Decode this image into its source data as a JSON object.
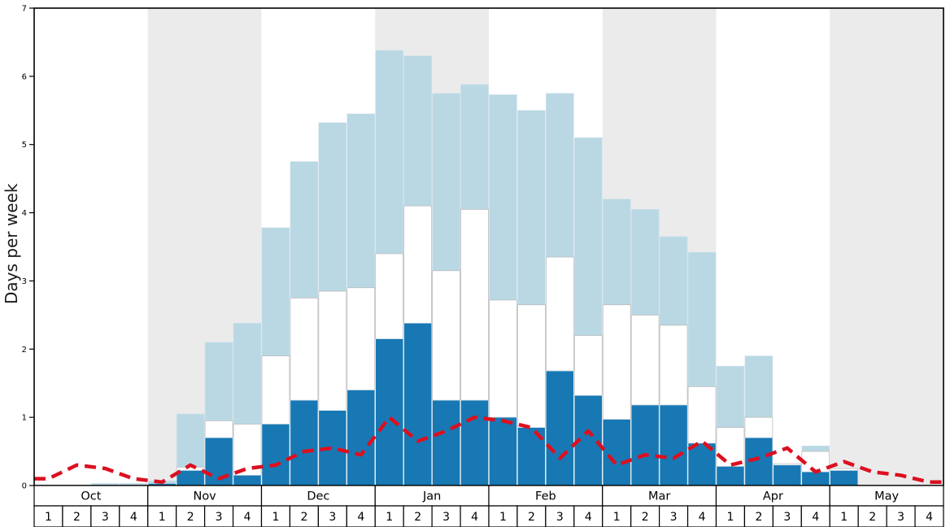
{
  "chart_data": {
    "type": "bar",
    "subtype": "stacked-bars-with-dashed-line",
    "title": "",
    "xlabel": "",
    "ylabel": "Days per week",
    "ylim": [
      0,
      7
    ],
    "yticks": [
      0,
      1,
      2,
      3,
      4,
      5,
      6,
      7
    ],
    "months": [
      "Oct",
      "Nov",
      "Dec",
      "Jan",
      "Feb",
      "Mar",
      "Apr",
      "May"
    ],
    "week_labels": [
      "1",
      "2",
      "3",
      "4"
    ],
    "values_are": "cumulative_stack_tops_in_days_per_week",
    "series": [
      {
        "name": "dark-blue-bar",
        "color": "#1878b4",
        "values": [
          0,
          0,
          0,
          0,
          0.03,
          0.22,
          0.7,
          0.15,
          0.9,
          1.25,
          1.1,
          1.4,
          2.15,
          2.38,
          1.25,
          1.25,
          1.0,
          0.85,
          1.68,
          1.32,
          0.97,
          1.18,
          1.18,
          0.62,
          0.28,
          0.7,
          0.3,
          0.2,
          0.22,
          0,
          0,
          0
        ]
      },
      {
        "name": "white-bar",
        "color": "#ffffff",
        "values": [
          0,
          0,
          0,
          0,
          0.03,
          0.27,
          0.95,
          0.9,
          1.9,
          2.75,
          2.85,
          2.9,
          3.4,
          4.1,
          3.15,
          4.05,
          2.72,
          2.65,
          3.35,
          2.2,
          2.65,
          2.5,
          2.35,
          1.45,
          0.85,
          1.0,
          0.32,
          0.5,
          0.25,
          0,
          0,
          0
        ]
      },
      {
        "name": "light-blue-bar",
        "color": "#b9d8e4",
        "values": [
          0,
          0,
          0.03,
          0.03,
          0.07,
          1.05,
          2.1,
          2.38,
          3.78,
          4.75,
          5.32,
          5.45,
          6.38,
          6.3,
          5.75,
          5.88,
          5.73,
          5.5,
          5.75,
          5.1,
          4.2,
          4.05,
          3.65,
          3.42,
          1.75,
          1.9,
          0.32,
          0.58,
          0.25,
          0,
          0,
          0
        ]
      },
      {
        "name": "red-dashed-line",
        "color": "#dc1020",
        "line_style": "dashed",
        "values": [
          0.1,
          0.3,
          0.25,
          0.1,
          0.05,
          0.3,
          0.1,
          0.25,
          0.3,
          0.5,
          0.55,
          0.45,
          1.0,
          0.65,
          0.8,
          1.0,
          0.95,
          0.85,
          0.4,
          0.8,
          0.3,
          0.45,
          0.4,
          0.65,
          0.3,
          0.4,
          0.55,
          0.2,
          0.35,
          0.2,
          0.15,
          0.05
        ]
      }
    ],
    "layout": {
      "band_color": "#ebebeb",
      "background": "#ffffff",
      "border_color": "#000000",
      "grid": false,
      "legend": false,
      "alternating_month_bands": true
    }
  }
}
